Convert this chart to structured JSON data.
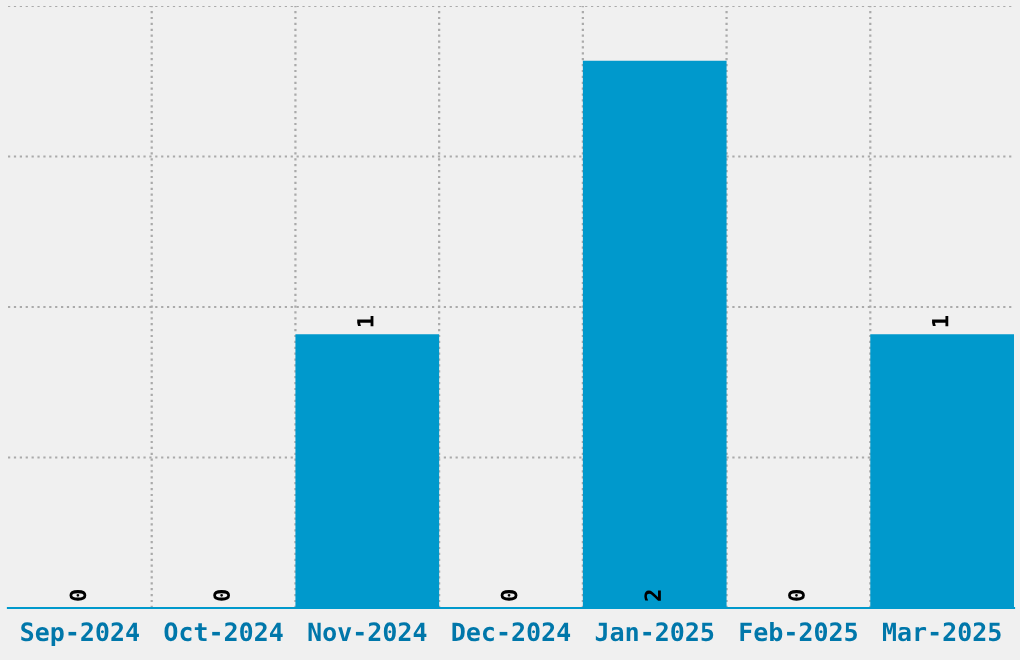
{
  "chart_data": {
    "type": "bar",
    "categories": [
      "Sep-2024",
      "Oct-2024",
      "Nov-2024",
      "Dec-2024",
      "Jan-2025",
      "Feb-2025",
      "Mar-2025"
    ],
    "values": [
      0,
      0,
      1,
      0,
      2,
      0,
      1
    ],
    "color": "#0099cc",
    "ylim": [
      0,
      2.2
    ],
    "yticks": [
      {
        "value": 0.55,
        "label": null
      },
      {
        "value": 1.1,
        "label": null
      },
      {
        "value": 1.65,
        "label": null
      },
      {
        "value": 2.2,
        "label": null
      }
    ],
    "grid": true,
    "data_labels": true,
    "tick_labels": "x"
  }
}
